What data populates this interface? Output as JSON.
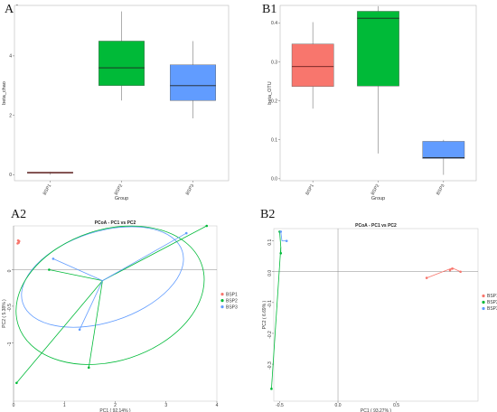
{
  "colors": {
    "BSP1": "#f8766d",
    "BSP2": "#00ba38",
    "BSP3": "#619cff"
  },
  "chart_data": [
    {
      "panel": "A1",
      "type": "box",
      "xlabel": "Group",
      "ylabel": "beta_chao",
      "categories": [
        "BSP1",
        "BSP2",
        "BSP3"
      ],
      "ylim": [
        -0.2,
        5.7
      ],
      "yticks": [
        "0",
        "2",
        "4"
      ],
      "ytick_values": [
        0,
        2,
        4
      ],
      "boxes": [
        {
          "name": "BSP1",
          "min": 0.0,
          "q1": 0.05,
          "median": 0.07,
          "q3": 0.09,
          "max": 0.1
        },
        {
          "name": "BSP2",
          "min": 2.5,
          "q1": 3.0,
          "median": 3.6,
          "q3": 4.5,
          "max": 5.5
        },
        {
          "name": "BSP3",
          "min": 1.9,
          "q1": 2.5,
          "median": 3.0,
          "q3": 3.7,
          "max": 4.5
        }
      ]
    },
    {
      "panel": "B1",
      "type": "box",
      "xlabel": "Group",
      "ylabel": "beta_OTU",
      "categories": [
        "BSP1",
        "BSP2",
        "BSP3"
      ],
      "ylim": [
        -0.005,
        0.445
      ],
      "yticks": [
        "0.0",
        "0.1",
        "0.2",
        "0.3",
        "0.4"
      ],
      "ytick_values": [
        0,
        0.1,
        0.2,
        0.3,
        0.4
      ],
      "boxes": [
        {
          "name": "BSP1",
          "min": 0.18,
          "q1": 0.237,
          "median": 0.288,
          "q3": 0.346,
          "max": 0.402
        },
        {
          "name": "BSP2",
          "min": 0.065,
          "q1": 0.238,
          "median": 0.412,
          "q3": 0.43,
          "max": 0.443
        },
        {
          "name": "BSP3",
          "min": 0.01,
          "q1": 0.052,
          "median": 0.054,
          "q3": 0.096,
          "max": 0.1
        }
      ]
    },
    {
      "panel": "A2",
      "type": "scatter",
      "title": "PCoA - PC1 vs PC2",
      "xlabel": "PC1 ( 92.14% )",
      "ylabel": "PC2 ( 5.38% )",
      "xlim": [
        0,
        4
      ],
      "ylim": [
        -1.8,
        0.6
      ],
      "xticks": [
        "0",
        "1",
        "2",
        "3",
        "4"
      ],
      "xtick_values": [
        0,
        1,
        2,
        3,
        4
      ],
      "yticks": [
        "-1",
        "-0.5",
        "0"
      ],
      "ytick_values": [
        -1,
        -0.5,
        0
      ],
      "centroids": {
        "BSP1": [
          0.1,
          0.38
        ],
        "BSP2": [
          1.75,
          -0.15
        ],
        "BSP3": [
          1.75,
          -0.15
        ]
      },
      "ellipses": [
        {
          "group": "BSP3",
          "cx": 1.75,
          "cy": -0.1,
          "rx": 1.65,
          "ry": 0.62,
          "rot": -18
        },
        {
          "group": "BSP2",
          "cx": 1.9,
          "cy": -0.35,
          "rx": 1.9,
          "ry": 0.9,
          "rot": -18
        }
      ],
      "series": [
        {
          "name": "BSP1",
          "points": [
            [
              0.08,
              0.36
            ],
            [
              0.11,
              0.39
            ],
            [
              0.1,
              0.37
            ],
            [
              0.09,
              0.4
            ]
          ]
        },
        {
          "name": "BSP2",
          "points": [
            [
              3.8,
              0.6
            ],
            [
              0.7,
              0.0
            ],
            [
              1.48,
              -1.34
            ],
            [
              0.06,
              -1.55
            ]
          ]
        },
        {
          "name": "BSP3",
          "points": [
            [
              3.4,
              0.5
            ],
            [
              0.78,
              0.15
            ],
            [
              1.3,
              -0.82
            ]
          ]
        }
      ],
      "legend": [
        "BSP1",
        "BSP2",
        "BSP3"
      ],
      "legend_position": "right"
    },
    {
      "panel": "B2",
      "type": "scatter",
      "title": "PCoA - PC1 vs PC2",
      "xlabel": "PC1 ( 93.27% )",
      "ylabel": "PC2 ( 6.69% )",
      "xlim": [
        -0.55,
        1.2
      ],
      "ylim": [
        -0.42,
        0.14
      ],
      "xticks": [
        "-0.5",
        "0.0",
        "0.5"
      ],
      "xtick_values": [
        -0.5,
        0,
        0.5
      ],
      "yticks": [
        "-0.3",
        "-0.2",
        "-0.1",
        "0.0",
        "0.1"
      ],
      "ytick_values": [
        -0.3,
        -0.2,
        -0.1,
        0,
        0.1
      ],
      "centroids": {
        "BSP1": [
          0.98,
          0.012
        ],
        "BSP2": [
          -0.49,
          0.08
        ],
        "BSP3": [
          -0.48,
          0.1
        ]
      },
      "series": [
        {
          "name": "BSP1",
          "points": [
            [
              0.76,
              -0.02
            ],
            [
              1.05,
              0.0
            ],
            [
              0.98,
              0.01
            ],
            [
              0.96,
              0.005
            ]
          ]
        },
        {
          "name": "BSP2",
          "points": [
            [
              -0.5,
              0.13
            ],
            [
              -0.57,
              -0.38
            ],
            [
              -0.49,
              0.06
            ]
          ]
        },
        {
          "name": "BSP3",
          "points": [
            [
              -0.49,
              0.13
            ],
            [
              -0.44,
              0.1
            ]
          ]
        }
      ],
      "legend": [
        "BSP1",
        "BSP2",
        "BSP3"
      ],
      "legend_position": "right"
    }
  ]
}
